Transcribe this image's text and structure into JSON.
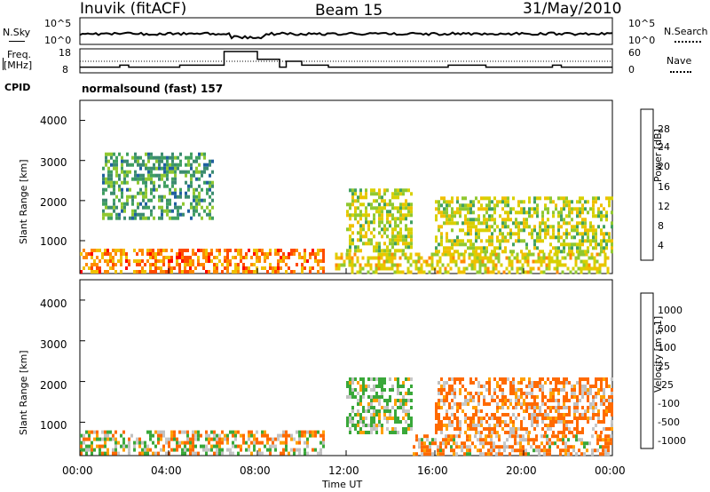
{
  "header": {
    "station": "Inuvik (fitACF)",
    "beam": "Beam 15",
    "date": "31/May/2010"
  },
  "top_panel": {
    "left_label": "N.Sky",
    "right_label": "N.Search",
    "left_ticks": [
      "10^5",
      "10^0"
    ],
    "right_ticks": [
      "10^5",
      "10^0"
    ]
  },
  "freq_panel": {
    "left_label_line1": "Freq.",
    "left_label_line2": "[MHz]",
    "right_label": "Nave",
    "left_ticks": [
      "18",
      "8"
    ],
    "right_ticks": [
      "60",
      "0"
    ]
  },
  "cpid": {
    "label": "CPID",
    "value": "normalsound (fast) 157"
  },
  "x_axis": {
    "label": "Time UT",
    "ticks": [
      "00:00",
      "04:00",
      "08:00",
      "12:00",
      "16:00",
      "20:00",
      "00:00"
    ]
  },
  "power_panel": {
    "ylabel": "Slant Range [km]",
    "yticks": [
      "4000",
      "3000",
      "2000",
      "1000"
    ],
    "colorbar_label": "Power [dB]",
    "colorbar_ticks": [
      "28",
      "24",
      "20",
      "16",
      "12",
      "8",
      "4"
    ],
    "colorbar_colors": [
      "#ff0000",
      "#ff4a00",
      "#ff8a00",
      "#f0c000",
      "#d8d000",
      "#90c830",
      "#40a060",
      "#3c8c70",
      "#2060a0",
      "#1840c0",
      "#0000ff"
    ]
  },
  "velocity_panel": {
    "ylabel": "Slant Range [km]",
    "yticks": [
      "4000",
      "3000",
      "2000",
      "1000"
    ],
    "colorbar_label": "Velocity [m s-1]",
    "colorbar_ticks": [
      "1000",
      "500",
      "100",
      "25",
      "-25",
      "-100",
      "-500",
      "-1000"
    ],
    "colorbar_colors": [
      "#1838c8",
      "#2b5fb0",
      "#2e8a5a",
      "#3aa83a",
      "#6cd040",
      "#c0c0c0",
      "#c8c8c8",
      "#f0d000",
      "#ffa000",
      "#ff6a00",
      "#ff2000",
      "#ff0000"
    ]
  },
  "chart_data": {
    "type": "heatmap",
    "title": "Inuvik (fitACF) Beam 15 31/May/2010",
    "xlabel": "Time UT",
    "ylabel": "Slant Range [km]",
    "xlim": [
      "00:00",
      "24:00"
    ],
    "ylim": [
      180,
      4500
    ],
    "x_ticks": [
      "00:00",
      "04:00",
      "08:00",
      "12:00",
      "16:00",
      "20:00",
      "00:00"
    ],
    "y_ticks": [
      1000,
      2000,
      3000,
      4000
    ],
    "power_colorbar": {
      "label": "Power [dB]",
      "min": 0,
      "max": 32,
      "ticks": [
        4,
        8,
        12,
        16,
        20,
        24,
        28
      ]
    },
    "velocity_colorbar": {
      "label": "Velocity [m s-1]",
      "ticks": [
        1000,
        500,
        100,
        25,
        -25,
        -100,
        -500,
        -1000
      ]
    },
    "freq_trace_MHz": [
      [
        0,
        10
      ],
      [
        1.8,
        10
      ],
      [
        1.8,
        11
      ],
      [
        2.2,
        11
      ],
      [
        2.2,
        10
      ],
      [
        4.5,
        10
      ],
      [
        4.5,
        11
      ],
      [
        6.5,
        11
      ],
      [
        6.5,
        18
      ],
      [
        8.0,
        18
      ],
      [
        8.0,
        14
      ],
      [
        9.0,
        14
      ],
      [
        9.0,
        10
      ],
      [
        9.3,
        10
      ],
      [
        9.3,
        13
      ],
      [
        10.0,
        13
      ],
      [
        10.0,
        11
      ],
      [
        11.2,
        11
      ],
      [
        11.2,
        10
      ],
      [
        16.6,
        10
      ],
      [
        16.6,
        11
      ],
      [
        18.3,
        11
      ],
      [
        18.3,
        10
      ],
      [
        21.3,
        10
      ],
      [
        21.3,
        11
      ],
      [
        21.7,
        11
      ],
      [
        21.7,
        10
      ],
      [
        24,
        10
      ]
    ],
    "power_regions": [
      {
        "t": [
          0.0,
          11.0
        ],
        "range": [
          180,
          800
        ],
        "dB": 26
      },
      {
        "t": [
          11.5,
          24.0
        ],
        "range": [
          180,
          700
        ],
        "dB": 20
      },
      {
        "t": [
          1.0,
          6.0
        ],
        "range": [
          1500,
          3200
        ],
        "dB": 12
      },
      {
        "t": [
          12.0,
          15.0
        ],
        "range": [
          700,
          2300
        ],
        "dB": 18
      },
      {
        "t": [
          16.0,
          24.0
        ],
        "range": [
          700,
          2100
        ],
        "dB": 18
      }
    ],
    "velocity_regions": [
      {
        "t": [
          0.0,
          11.0
        ],
        "range": [
          180,
          800
        ],
        "v": 0
      },
      {
        "t": [
          12.0,
          15.0
        ],
        "range": [
          700,
          2100
        ],
        "v": 150
      },
      {
        "t": [
          16.0,
          24.0
        ],
        "range": [
          700,
          2100
        ],
        "v": -150
      },
      {
        "t": [
          15.0,
          24.0
        ],
        "range": [
          180,
          700
        ],
        "v": -100
      }
    ]
  }
}
